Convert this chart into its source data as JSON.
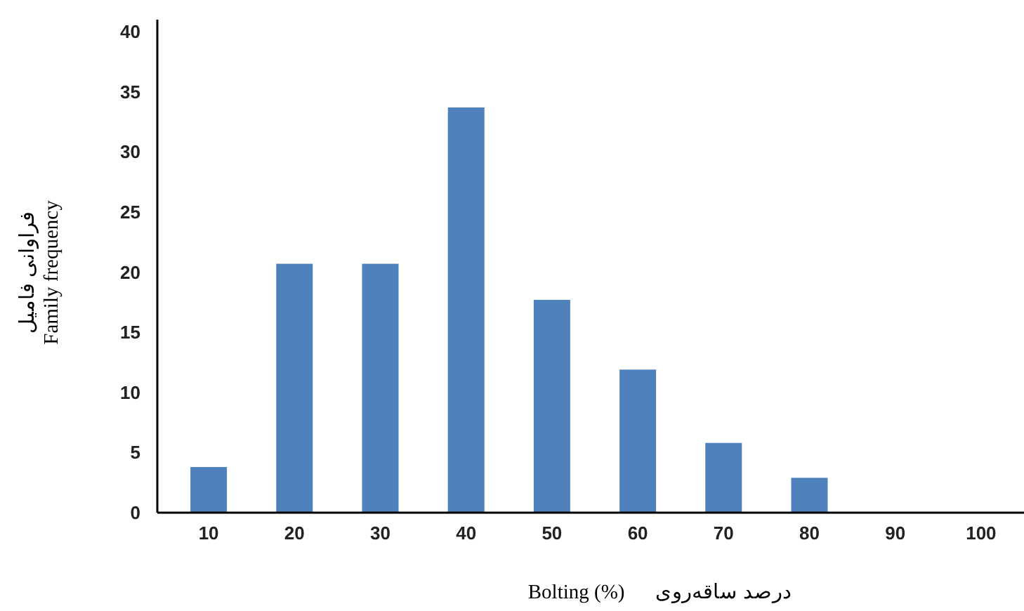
{
  "chart_data": {
    "type": "bar",
    "xlabel": "Bolting (%)      درصد ساقه‌روی",
    "ylabel": "فراوانی فامیل\nFamily frequency",
    "categories": [
      "10",
      "20",
      "30",
      "40",
      "50",
      "60",
      "70",
      "80",
      "90",
      "100"
    ],
    "values": [
      3.8,
      20.7,
      20.7,
      33.7,
      17.7,
      11.9,
      5.8,
      2.9,
      0,
      0
    ],
    "color": "#4f81bd",
    "ylim": [
      0,
      41
    ],
    "yticks": [
      0,
      5,
      10,
      15,
      20,
      25,
      30,
      35,
      40
    ],
    "grid": false
  }
}
